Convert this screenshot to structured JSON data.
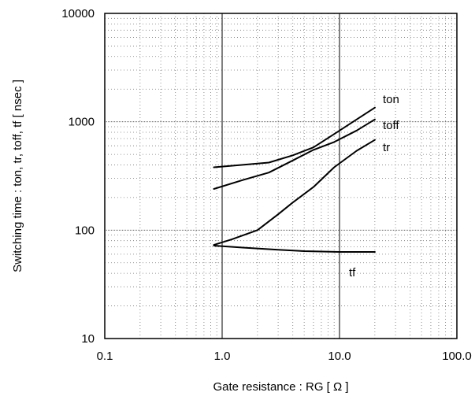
{
  "chart_data": {
    "type": "line",
    "title": "",
    "xlabel": "Gate resistance : RG [ Ω ]",
    "ylabel": "Switching time : ton, tr, toff, tf [ nsec ]",
    "x_scale": "log",
    "y_scale": "log",
    "xlim": [
      0.1,
      100
    ],
    "ylim": [
      10,
      10000
    ],
    "x_ticks": [
      "0.1",
      "1.0",
      "10.0",
      "100.0"
    ],
    "y_ticks": [
      "10",
      "100",
      "1000",
      "10000"
    ],
    "grid": true,
    "legend": "none",
    "series": [
      {
        "name": "ton",
        "points": [
          [
            0.85,
            380
          ],
          [
            1.5,
            400
          ],
          [
            2.5,
            420
          ],
          [
            4,
            490
          ],
          [
            6,
            580
          ],
          [
            9,
            770
          ],
          [
            14,
            1050
          ],
          [
            20,
            1350
          ]
        ]
      },
      {
        "name": "toff",
        "points": [
          [
            0.85,
            240
          ],
          [
            1.5,
            290
          ],
          [
            2.5,
            340
          ],
          [
            4,
            440
          ],
          [
            6,
            550
          ],
          [
            9,
            650
          ],
          [
            14,
            830
          ],
          [
            20,
            1050
          ]
        ]
      },
      {
        "name": "tr",
        "points": [
          [
            0.85,
            73
          ],
          [
            1.2,
            82
          ],
          [
            2,
            100
          ],
          [
            3,
            140
          ],
          [
            4,
            180
          ],
          [
            6,
            250
          ],
          [
            9,
            380
          ],
          [
            14,
            540
          ],
          [
            20,
            680
          ]
        ]
      },
      {
        "name": "tf",
        "points": [
          [
            0.85,
            72
          ],
          [
            1.5,
            69
          ],
          [
            3,
            66
          ],
          [
            5,
            64
          ],
          [
            10,
            63
          ],
          [
            20,
            63
          ]
        ]
      }
    ]
  }
}
